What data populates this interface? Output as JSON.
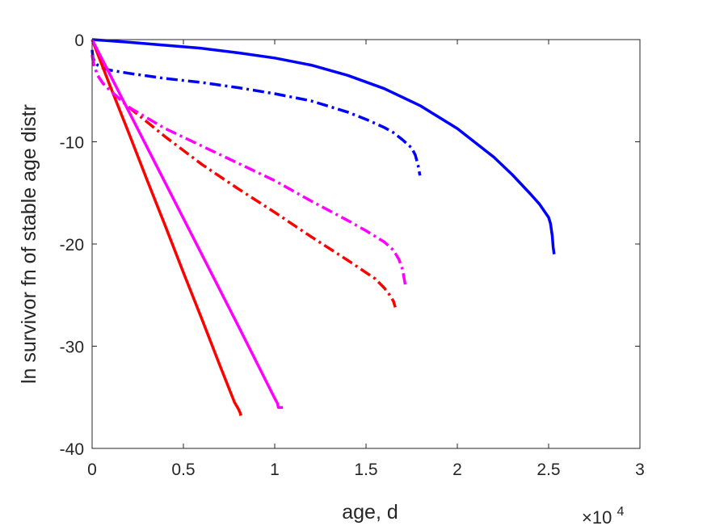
{
  "chart_data": {
    "type": "line",
    "title": "",
    "xlabel": "age, d",
    "ylabel": "ln survivor fn of stable age distr",
    "x_exponent_label": {
      "base": "×10",
      "power": "4"
    },
    "xlim": [
      0,
      30000
    ],
    "ylim": [
      -40,
      0
    ],
    "x_ticks": [
      0,
      5000,
      10000,
      15000,
      20000,
      25000,
      30000
    ],
    "x_tick_labels": [
      "0",
      "0.5",
      "1",
      "1.5",
      "2",
      "2.5",
      "3"
    ],
    "y_ticks": [
      0,
      -10,
      -20,
      -30,
      -40
    ],
    "y_tick_labels": [
      "0",
      "-10",
      "-20",
      "-30",
      "-40"
    ],
    "grid": false,
    "series": [
      {
        "color": "#0000ff",
        "style": "solid",
        "x": [
          0,
          2000,
          4000,
          6000,
          8000,
          10000,
          12000,
          14000,
          16000,
          18000,
          20000,
          22000,
          23000,
          24000,
          24500,
          25000,
          25100,
          25200,
          25250,
          25300
        ],
        "y": [
          0,
          -0.25,
          -0.55,
          -0.85,
          -1.3,
          -1.8,
          -2.5,
          -3.5,
          -4.8,
          -6.5,
          -8.7,
          -11.5,
          -13.2,
          -15.1,
          -16.1,
          -17.4,
          -18,
          -19.2,
          -20.3,
          -21
        ]
      },
      {
        "color": "#0000ff",
        "style": "dashdot",
        "x": [
          0,
          50,
          150,
          300,
          600,
          1000,
          2000,
          4000,
          6000,
          8000,
          10000,
          12000,
          14000,
          15000,
          16000,
          16500,
          17000,
          17500,
          17700,
          17850,
          17950
        ],
        "y": [
          -1.0,
          -1.8,
          -2.2,
          -2.5,
          -2.8,
          -3.0,
          -3.3,
          -3.8,
          -4.2,
          -4.7,
          -5.3,
          -6.0,
          -7.1,
          -7.8,
          -8.6,
          -9.1,
          -9.8,
          -10.6,
          -11.3,
          -12.3,
          -13.3
        ]
      },
      {
        "color": "#ff0000",
        "style": "solid",
        "x": [
          0,
          1000,
          2000,
          3000,
          4000,
          5000,
          6000,
          7000,
          7800,
          8000,
          8100,
          8150
        ],
        "y": [
          0,
          -4.6,
          -9.1,
          -13.7,
          -18.2,
          -22.8,
          -27.3,
          -31.9,
          -35.5,
          -36.1,
          -36.5,
          -36.8
        ]
      },
      {
        "color": "#ff00ff",
        "style": "solid",
        "x": [
          0,
          1000,
          2000,
          4000,
          6000,
          8000,
          10000,
          10150,
          10200,
          10450
        ],
        "y": [
          0,
          -3.5,
          -7.0,
          -14.0,
          -21.0,
          -28.0,
          -35.1,
          -35.6,
          -36.0,
          -36.0
        ]
      },
      {
        "color": "#ff0000",
        "style": "dashdot",
        "x": [
          0,
          100,
          300,
          600,
          1000,
          2000,
          4000,
          6000,
          8000,
          10000,
          12000,
          14000,
          15000,
          15500,
          16000,
          16300,
          16500,
          16600
        ],
        "y": [
          -1.5,
          -2.5,
          -3.5,
          -4.3,
          -5.0,
          -6.6,
          -9.5,
          -12.2,
          -14.6,
          -16.9,
          -19.3,
          -21.6,
          -22.8,
          -23.4,
          -24.3,
          -25.0,
          -25.6,
          -26.2
        ]
      },
      {
        "color": "#ff00ff",
        "style": "dashdot",
        "x": [
          0,
          100,
          300,
          600,
          1000,
          2000,
          4000,
          6000,
          8000,
          10000,
          12000,
          14000,
          15000,
          16000,
          16500,
          16800,
          17000,
          17150
        ],
        "y": [
          -1.5,
          -2.5,
          -3.5,
          -4.3,
          -5.0,
          -6.6,
          -8.7,
          -10.4,
          -12.1,
          -13.8,
          -15.8,
          -17.7,
          -18.7,
          -19.8,
          -20.6,
          -21.5,
          -22.5,
          -24.0
        ]
      }
    ]
  }
}
